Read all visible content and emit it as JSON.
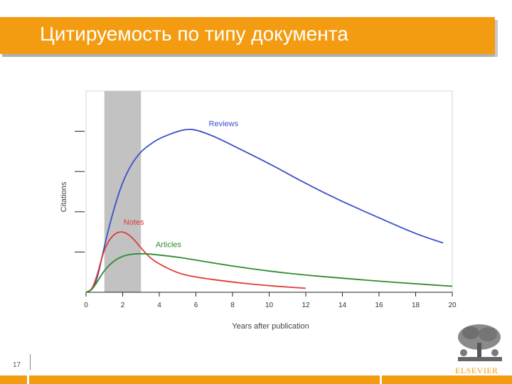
{
  "header": {
    "title": "Цитируемость по типу документа"
  },
  "slide": {
    "number": "17"
  },
  "logo": {
    "text": "ELSEVIER"
  },
  "colors": {
    "header_bg": "#f39c12",
    "reviews": "#3b4fc8",
    "notes": "#e03a3a",
    "articles": "#2e8b2e",
    "band": "#c2c2c2"
  },
  "chart_data": {
    "type": "line",
    "title": "",
    "xlabel": "Years after publication",
    "ylabel": "Citations",
    "xlim": [
      0,
      20
    ],
    "ylim": [
      0,
      10
    ],
    "xticks": [
      0,
      2,
      4,
      6,
      8,
      10,
      12,
      14,
      16,
      18,
      20
    ],
    "xtick_labels": [
      "0",
      "2",
      "4",
      "6",
      "8",
      "10",
      "12",
      "14",
      "16",
      "18",
      "20"
    ],
    "yticks": [
      2,
      4,
      6,
      8
    ],
    "ytick_labels": [
      "",
      "",
      "",
      ""
    ],
    "grid": false,
    "legend": "inline labels",
    "shaded_region": {
      "x_from": 1,
      "x_to": 3
    },
    "series": [
      {
        "name": "Reviews",
        "x": [
          0,
          0.3,
          0.6,
          1,
          1.5,
          2,
          2.5,
          3,
          3.5,
          4,
          5,
          5.5,
          6,
          7,
          8,
          10,
          12,
          14,
          16,
          18,
          19.5
        ],
        "y": [
          0,
          0.1,
          0.6,
          2.3,
          4.1,
          5.5,
          6.4,
          7.0,
          7.35,
          7.65,
          8.0,
          8.1,
          8.08,
          7.75,
          7.3,
          6.4,
          5.4,
          4.5,
          3.7,
          2.9,
          2.45
        ]
      },
      {
        "name": "Notes",
        "x": [
          0,
          0.3,
          0.6,
          1,
          1.5,
          2,
          2.5,
          3,
          3.5,
          4,
          5,
          6,
          8,
          10,
          12
        ],
        "y": [
          0,
          0.1,
          0.8,
          2.2,
          2.9,
          3.05,
          2.75,
          2.2,
          1.7,
          1.4,
          0.95,
          0.75,
          0.5,
          0.32,
          0.2
        ]
      },
      {
        "name": "Articles",
        "x": [
          0,
          0.3,
          0.6,
          1,
          1.5,
          2,
          2.5,
          3,
          3.5,
          4,
          5,
          6,
          8,
          10,
          12,
          14,
          16,
          18,
          20
        ],
        "y": [
          0,
          0.1,
          0.5,
          1.1,
          1.55,
          1.8,
          1.9,
          1.92,
          1.9,
          1.85,
          1.75,
          1.6,
          1.3,
          1.05,
          0.85,
          0.7,
          0.55,
          0.42,
          0.3
        ]
      }
    ]
  }
}
